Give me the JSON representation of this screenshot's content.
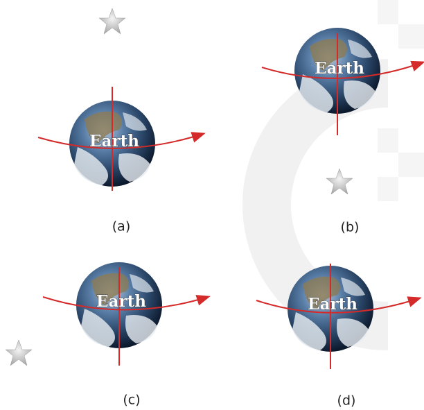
{
  "panels": [
    {
      "label": "(a)",
      "planet": "Earth"
    },
    {
      "label": "(b)",
      "planet": "Earth"
    },
    {
      "label": "(c)",
      "planet": "Earth"
    },
    {
      "label": "(d)",
      "planet": "Earth"
    }
  ]
}
